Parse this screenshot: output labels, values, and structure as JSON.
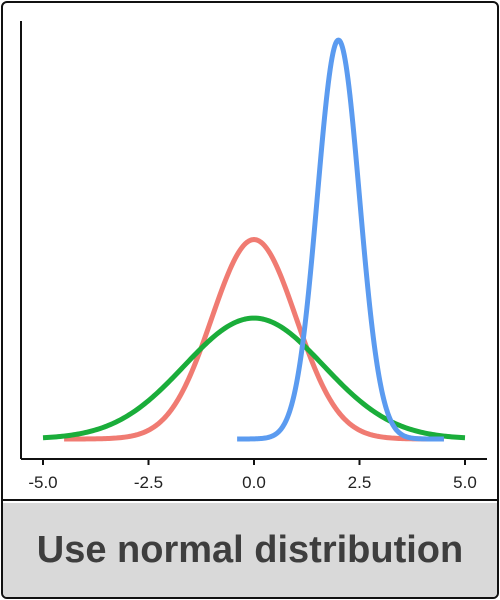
{
  "action_button": {
    "label": "Use normal distribution"
  },
  "chart_data": {
    "type": "line",
    "title": "",
    "xlabel": "",
    "ylabel": "",
    "xlim": [
      -5.0,
      5.0
    ],
    "ylim": [
      0,
      0.8
    ],
    "x_ticks": [
      "-5.0",
      "-2.5",
      "0.0",
      "2.5",
      "5.0"
    ],
    "y_ticks_visible": false,
    "grid": false,
    "legend": "none",
    "series": [
      {
        "color": "#f07b72",
        "mean": 0,
        "sd": 1,
        "x_range": [
          -4.5,
          4.5
        ]
      },
      {
        "color": "#1aad3a",
        "mean": 0,
        "sd": 1.65,
        "x_range": [
          -5.0,
          5.0
        ]
      },
      {
        "color": "#5b9bf0",
        "mean": 2,
        "sd": 0.5,
        "x_range": [
          -0.4,
          4.5
        ]
      }
    ]
  }
}
